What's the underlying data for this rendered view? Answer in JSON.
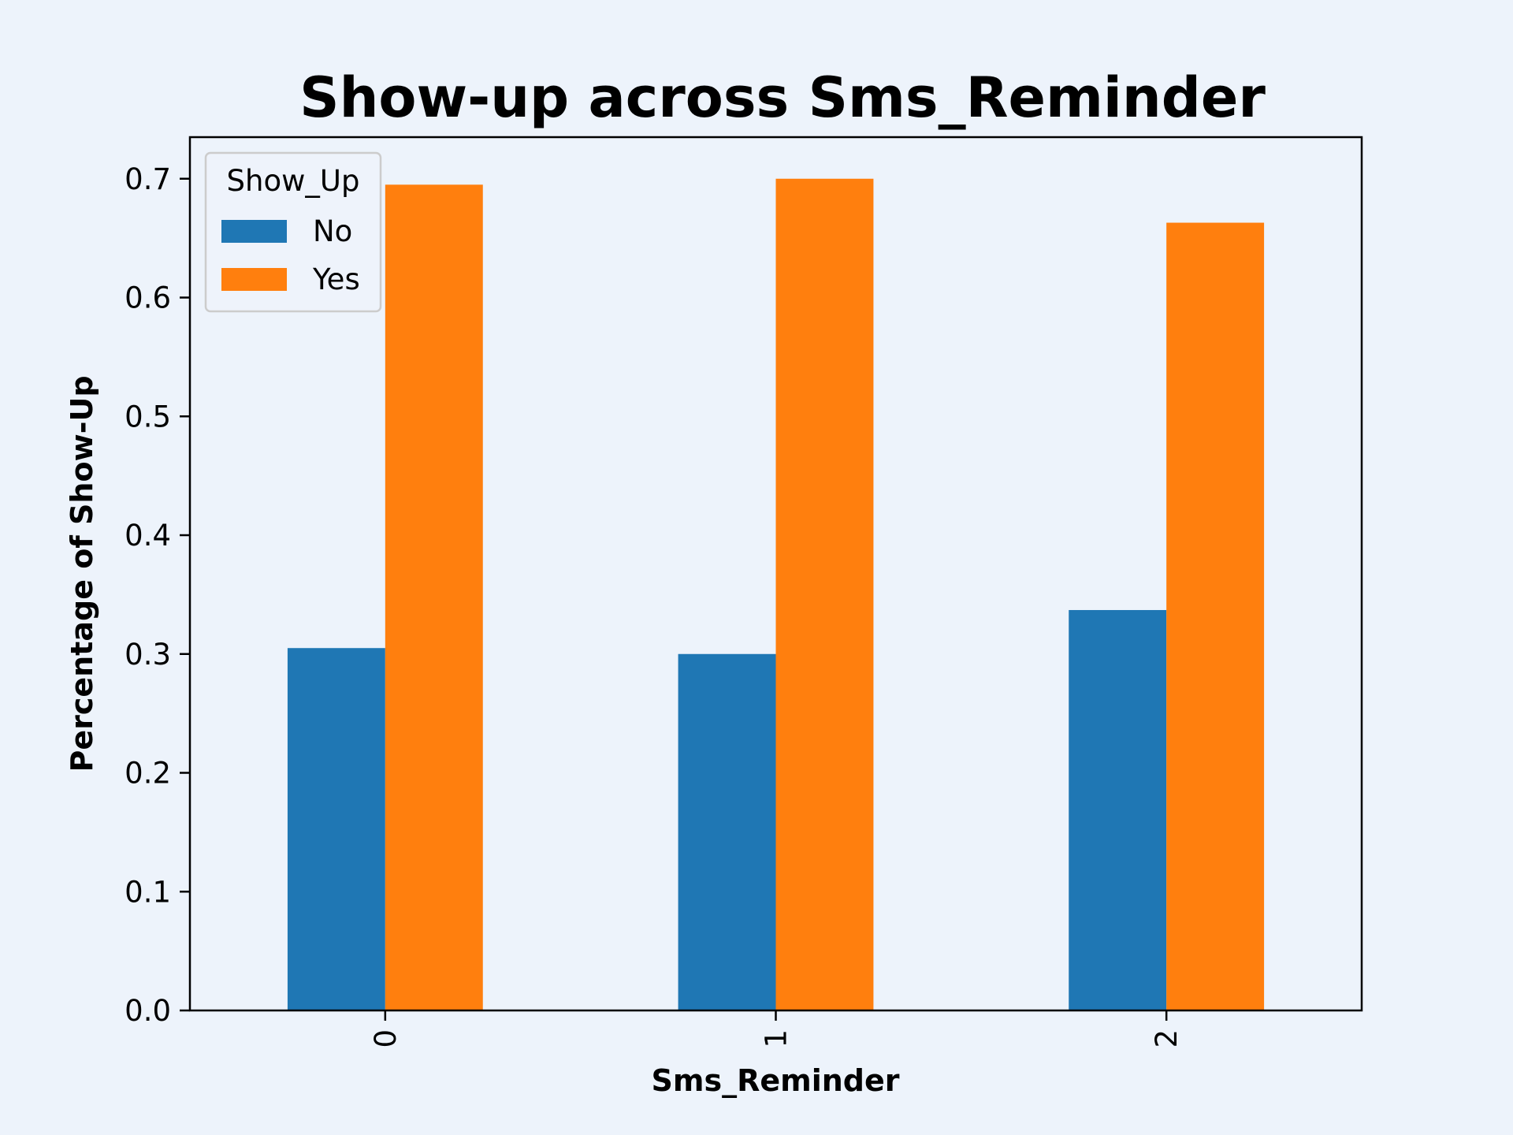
{
  "chart_data": {
    "type": "bar",
    "title": "Show-up across Sms_Reminder",
    "xlabel": "Sms_Reminder",
    "ylabel": "Percentage of Show-Up",
    "categories": [
      "0",
      "1",
      "2"
    ],
    "series": [
      {
        "name": "No",
        "color": "#1f77b4",
        "values": [
          0.305,
          0.3,
          0.337
        ]
      },
      {
        "name": "Yes",
        "color": "#ff7f0e",
        "values": [
          0.695,
          0.7,
          0.663
        ]
      }
    ],
    "ylim": [
      0,
      0.735
    ],
    "yticks": [
      "0.0",
      "0.1",
      "0.2",
      "0.3",
      "0.4",
      "0.5",
      "0.6",
      "0.7"
    ],
    "xtick_rotation": 90,
    "legend": {
      "title": "Show_Up",
      "position": "top-left"
    },
    "grid": false
  },
  "colors": {
    "background": "#edf3fb",
    "plot_background": "#edf3fb",
    "axis": "#000000"
  }
}
